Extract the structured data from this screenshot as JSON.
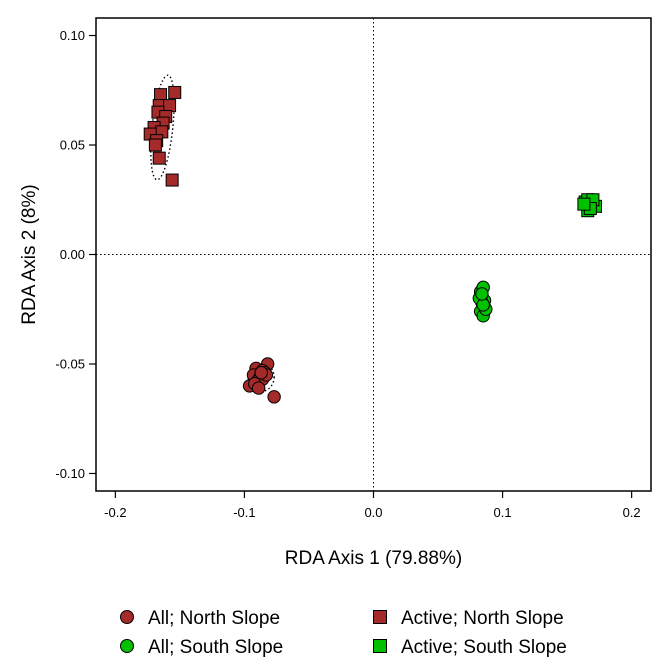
{
  "chart_data": {
    "type": "scatter",
    "title": "",
    "xlabel": "RDA Axis 1 (79.88%)",
    "ylabel": "RDA Axis 2 (8%)",
    "xlim": [
      -0.215,
      0.215
    ],
    "ylim": [
      -0.108,
      0.108
    ],
    "x_ticks": [
      -0.2,
      -0.1,
      0.0,
      0.1,
      0.2
    ],
    "x_tick_labels": [
      "-0.2",
      "-0.1",
      "0.0",
      "0.1",
      "0.2"
    ],
    "y_ticks": [
      -0.1,
      -0.05,
      0.0,
      0.05,
      0.1
    ],
    "y_tick_labels": [
      "-0.10",
      "-0.05",
      "0.00",
      "0.05",
      "0.10"
    ],
    "reference_lines": {
      "x": 0.0,
      "y": 0.0,
      "style": "dotted"
    },
    "grid": false,
    "legend_position": "bottom",
    "series": [
      {
        "name": "All; North Slope",
        "marker": "circle",
        "color": "#A52A2A",
        "points": [
          [
            -0.091,
            -0.052
          ],
          [
            -0.082,
            -0.05
          ],
          [
            -0.086,
            -0.053
          ],
          [
            -0.093,
            -0.055
          ],
          [
            -0.088,
            -0.056
          ],
          [
            -0.084,
            -0.054
          ],
          [
            -0.09,
            -0.058
          ],
          [
            -0.086,
            -0.057
          ],
          [
            -0.096,
            -0.06
          ],
          [
            -0.092,
            -0.059
          ],
          [
            -0.083,
            -0.055
          ],
          [
            -0.087,
            -0.054
          ],
          [
            -0.089,
            -0.061
          ],
          [
            -0.077,
            -0.065
          ]
        ],
        "ellipse": {
          "cx": -0.087,
          "cy": -0.056,
          "rx": 0.01,
          "ry": 0.0065,
          "angle": 0
        }
      },
      {
        "name": "All; South Slope",
        "marker": "circle",
        "color": "#00C000",
        "points": [
          [
            0.083,
            -0.017
          ],
          [
            0.085,
            -0.015
          ],
          [
            0.084,
            -0.019
          ],
          [
            0.086,
            -0.021
          ],
          [
            0.084,
            -0.022
          ],
          [
            0.086,
            -0.024
          ],
          [
            0.083,
            -0.026
          ],
          [
            0.085,
            -0.028
          ],
          [
            0.087,
            -0.025
          ],
          [
            0.082,
            -0.02
          ],
          [
            0.085,
            -0.023
          ],
          [
            0.084,
            -0.018
          ]
        ],
        "ellipse": null
      },
      {
        "name": "Active; North Slope",
        "marker": "square",
        "color": "#A52A2A",
        "points": [
          [
            -0.165,
            0.073
          ],
          [
            -0.154,
            0.074
          ],
          [
            -0.166,
            0.068
          ],
          [
            -0.158,
            0.068
          ],
          [
            -0.167,
            0.065
          ],
          [
            -0.161,
            0.063
          ],
          [
            -0.163,
            0.06
          ],
          [
            -0.17,
            0.058
          ],
          [
            -0.164,
            0.056
          ],
          [
            -0.173,
            0.055
          ],
          [
            -0.168,
            0.052
          ],
          [
            -0.169,
            0.05
          ],
          [
            -0.166,
            0.044
          ],
          [
            -0.156,
            0.034
          ]
        ],
        "ellipse": {
          "cx": -0.1635,
          "cy": 0.058,
          "rx": 0.008,
          "ry": 0.024,
          "angle": 6
        }
      },
      {
        "name": "Active; South Slope",
        "marker": "square",
        "color": "#00C000",
        "points": [
          [
            0.164,
            0.024
          ],
          [
            0.168,
            0.023
          ],
          [
            0.172,
            0.022
          ],
          [
            0.166,
            0.025
          ],
          [
            0.17,
            0.025
          ],
          [
            0.166,
            0.02
          ],
          [
            0.168,
            0.021
          ],
          [
            0.163,
            0.023
          ]
        ],
        "ellipse": null
      }
    ]
  }
}
